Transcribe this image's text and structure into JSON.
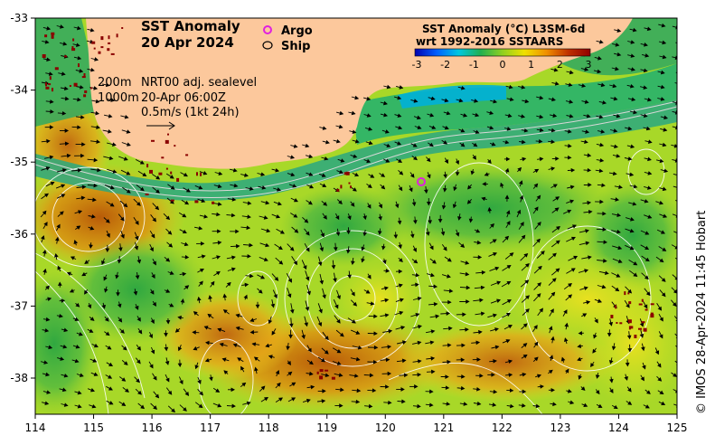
{
  "map": {
    "title_line1": "SST Anomaly",
    "title_line2": "20 Apr 2024",
    "legend": {
      "argo_label": "Argo",
      "ship_label": "Ship",
      "argo_color": "#e020e0",
      "ship_color": "#000000"
    },
    "info": {
      "line1_a": "200m",
      "line1_b": "NRT00 adj. sealevel",
      "line2_a": "1000m",
      "line2_b": "20-Apr 06:00Z",
      "line3": "0.5m/s (1kt 24h)"
    },
    "colorbar": {
      "title_line1": "SST Anomaly (°C) L3SM-6d",
      "title_line2": "wrt 1992-2016 SSTAARS",
      "ticks": [
        "-3",
        "-2",
        "-1",
        "0",
        "1",
        "2",
        "3"
      ],
      "colors": [
        "#0000b0",
        "#0060ff",
        "#00c8e0",
        "#20b050",
        "#90d020",
        "#f0e000",
        "#f09000",
        "#c03000",
        "#900000"
      ]
    },
    "x_ticks": [
      "114",
      "115",
      "116",
      "117",
      "118",
      "119",
      "120",
      "121",
      "122",
      "123",
      "124",
      "125"
    ],
    "y_ticks": [
      "-33",
      "-34",
      "-35",
      "-36",
      "-37",
      "-38"
    ],
    "credit": "© IMOS 28-Apr-2024 11:45 Hobart",
    "colors": {
      "land": "#fcc89c",
      "warm": "#d07a10",
      "neutral": "#60c040",
      "cool": "#20a870",
      "coast_blue": "#00a8d0"
    }
  }
}
